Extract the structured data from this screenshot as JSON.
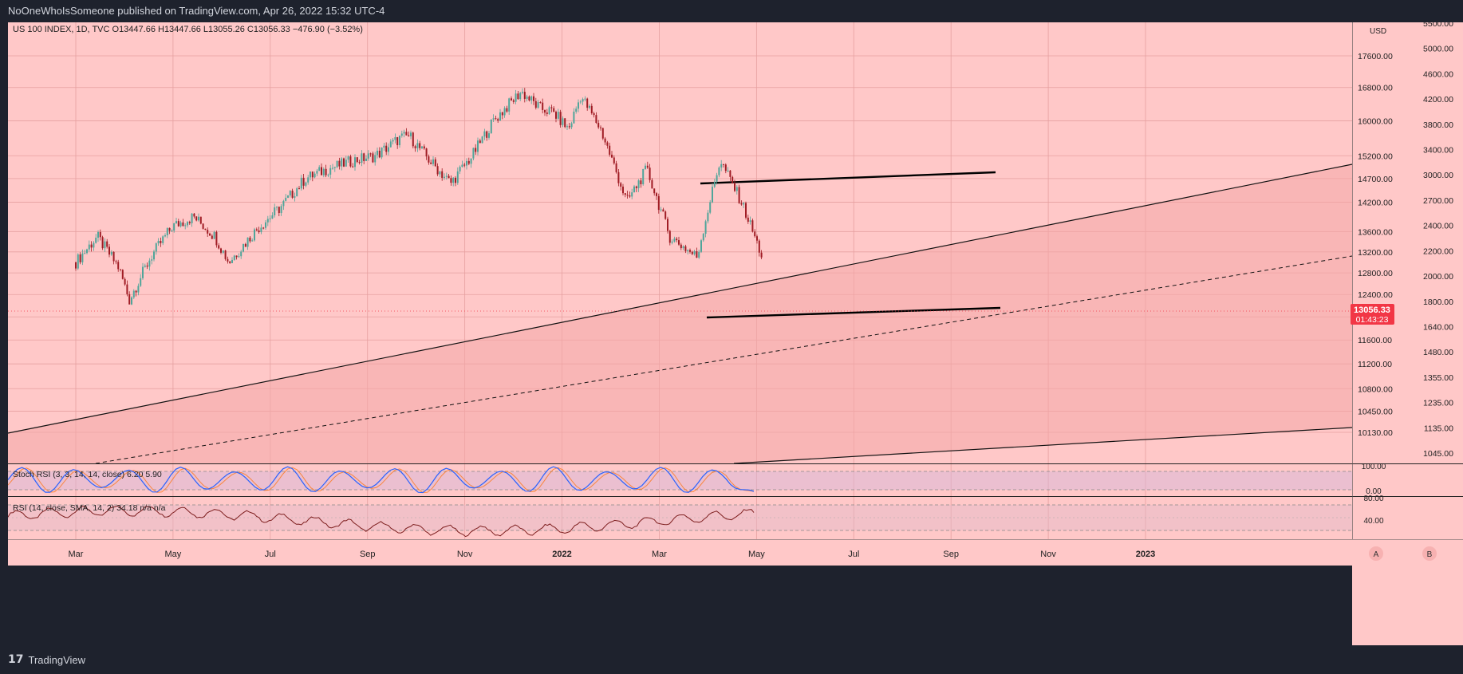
{
  "header": {
    "publisher_line": "NoOneWhoIsSomeone published on TradingView.com, Apr 26, 2022 15:32 UTC-4"
  },
  "footer": {
    "brand": "TradingView",
    "logo_glyph": "17"
  },
  "colors": {
    "background": "#ffc8c8",
    "price_tag": "#f23645",
    "stoch_k": "#2962ff",
    "stoch_d": "#ff6d00",
    "rsi_line": "#7e1f1f"
  },
  "main_chart": {
    "legend": "US 100 INDEX, 1D, TVC  O13447.66  H13447.66  L13055.26  C13056.33  −476.90 (−3.52%)",
    "currency": "USD",
    "price_tag": {
      "price": "13056.33",
      "countdown": "01:43:23"
    }
  },
  "stoch_rsi": {
    "legend": "Stoch RSI (3, 3, 14, 14, close)  6.20  5.90"
  },
  "rsi": {
    "legend": "RSI (14, close, SMA, 14, 2)  34.18  n/a  n/a"
  },
  "scale_buttons": {
    "a": "A",
    "b": "B"
  },
  "chart_data": {
    "type": "line",
    "title": "US 100 INDEX, 1D, TVC",
    "ohlc_last": {
      "open": 13447.66,
      "high": 13447.66,
      "low": 13055.26,
      "close": 13056.33,
      "change": -476.9,
      "change_pct": -3.52
    },
    "y_scale": "log",
    "x_labels": [
      "Mar",
      "May",
      "Jul",
      "Sep",
      "Nov",
      "2022",
      "Mar",
      "May",
      "Jul",
      "Sep",
      "Nov",
      "2023"
    ],
    "y_ticks_left": [
      "17600.00",
      "16800.00",
      "16000.00",
      "15200.00",
      "14700.00",
      "14200.00",
      "13600.00",
      "13200.00",
      "12800.00",
      "12400.00",
      "12000.00",
      "11600.00",
      "11200.00",
      "10800.00",
      "10450.00",
      "10130.00"
    ],
    "y_ticks_right": [
      "5500.00",
      "5000.00",
      "4600.00",
      "4200.00",
      "3800.00",
      "3400.00",
      "3000.00",
      "2700.00",
      "2400.00",
      "2200.00",
      "2000.00",
      "1800.00",
      "1640.00",
      "1480.00",
      "1355.00",
      "1235.00",
      "1135.00",
      "1045.00"
    ],
    "series": [
      {
        "name": "US 100 INDEX close",
        "x": [
          "2021-02-01",
          "2021-02-15",
          "2021-03-01",
          "2021-03-08",
          "2021-03-22",
          "2021-04-05",
          "2021-04-19",
          "2021-05-03",
          "2021-05-12",
          "2021-06-01",
          "2021-06-15",
          "2021-07-01",
          "2021-07-15",
          "2021-08-02",
          "2021-08-16",
          "2021-09-01",
          "2021-09-07",
          "2021-09-20",
          "2021-10-04",
          "2021-10-18",
          "2021-11-01",
          "2021-11-19",
          "2021-12-01",
          "2021-12-10",
          "2021-12-20",
          "2021-12-28",
          "2022-01-10",
          "2022-01-27",
          "2022-02-09",
          "2022-02-24",
          "2022-03-14",
          "2022-03-29",
          "2022-04-12",
          "2022-04-26"
        ],
        "values": [
          13000,
          13500,
          12900,
          12300,
          13100,
          13700,
          13900,
          13500,
          13000,
          13700,
          14100,
          14700,
          14900,
          15100,
          15200,
          15600,
          15650,
          15100,
          14600,
          15200,
          16000,
          16700,
          16300,
          16200,
          15800,
          16600,
          15800,
          14200,
          14900,
          13500,
          13100,
          15100,
          14200,
          13056
        ]
      },
      {
        "name": "Stoch RSI K",
        "x": [
          "2021-02",
          "2021-06",
          "2021-10",
          "2022-01",
          "2022-04-26"
        ],
        "values": [
          50,
          60,
          55,
          40,
          6.2
        ]
      },
      {
        "name": "Stoch RSI D",
        "x": [
          "2021-02",
          "2021-06",
          "2021-10",
          "2022-01",
          "2022-04-26"
        ],
        "values": [
          50,
          58,
          54,
          42,
          5.9
        ]
      },
      {
        "name": "RSI 14",
        "x": [
          "2021-02",
          "2021-06",
          "2021-10",
          "2022-01",
          "2022-04-26"
        ],
        "values": [
          50,
          58,
          62,
          45,
          34.18
        ]
      }
    ],
    "drawings": [
      {
        "type": "trendline",
        "x": [
          "2022-01-10",
          "2022-06-30"
        ],
        "values": [
          15200,
          15400
        ]
      },
      {
        "type": "trendline",
        "x": [
          "2022-01-20",
          "2022-06-30"
        ],
        "values": [
          12950,
          13110
        ]
      },
      {
        "type": "parallel_channel",
        "upper": {
          "x": [
            "2021-01-01",
            "2023-01-01"
          ],
          "values": [
            11300,
            15600
          ]
        },
        "lower": {
          "x": [
            "2021-12-01",
            "2023-01-01"
          ],
          "values": [
            10000,
            11500
          ]
        }
      }
    ]
  }
}
